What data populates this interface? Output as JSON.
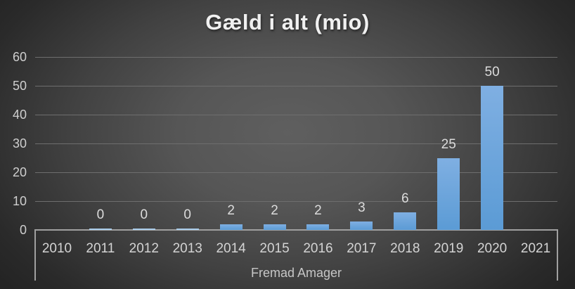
{
  "chart_data": {
    "type": "bar",
    "title": "Gæld i alt (mio)",
    "xlabel": "Fremad Amager",
    "ylabel": "",
    "categories": [
      "2010",
      "2011",
      "2012",
      "2013",
      "2014",
      "2015",
      "2016",
      "2017",
      "2018",
      "2019",
      "2020",
      "2021"
    ],
    "values": [
      null,
      0,
      0,
      0,
      2,
      2,
      2,
      3,
      6,
      25,
      50,
      null
    ],
    "ylim": [
      0,
      60
    ],
    "yticks": [
      0,
      10,
      20,
      30,
      40,
      50,
      60
    ],
    "grid": true,
    "legend": false,
    "colors": {
      "bar_top": "#7FAFE2",
      "bar_bottom": "#5B9BD5",
      "zero_bar": "#A9CCEA",
      "gridline": "#6E6E6E",
      "axis_line": "#A0A0A0",
      "data_label": "#DCDCDC",
      "tick_label": "#D4D4D4",
      "title_text": "#F0F0F0"
    }
  }
}
